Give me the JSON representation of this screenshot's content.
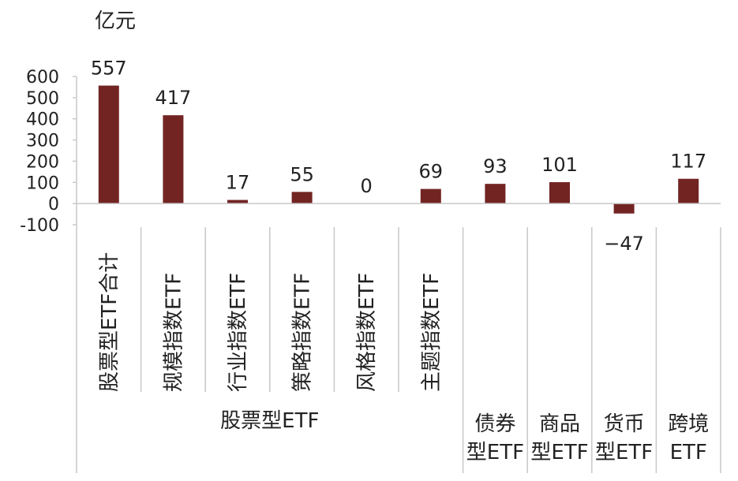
{
  "chart_data": {
    "type": "bar",
    "unit": "亿元",
    "ylim": [
      -100,
      600
    ],
    "yticks": [
      "600",
      "500",
      "400",
      "300",
      "200",
      "100",
      "0",
      "-100"
    ],
    "categories": [
      "股票型ETF合计",
      "规模指数ETF",
      "行业指数ETF",
      "策略指数ETF",
      "风格指数ETF",
      "主题指数ETF",
      "债券型ETF",
      "商品型ETF",
      "货币型ETF",
      "跨境ETF"
    ],
    "values": [
      557,
      417,
      17,
      55,
      0,
      69,
      93,
      101,
      -47,
      117
    ],
    "data_labels": [
      "557",
      "417",
      "17",
      "55",
      "0",
      "69",
      "93",
      "101",
      "−47",
      "117"
    ],
    "groups": [
      {
        "label": "股票型ETF",
        "lines": [
          "股票型ETF"
        ]
      },
      {
        "label": "债券型ETF",
        "lines": [
          "债券",
          "型ETF"
        ]
      },
      {
        "label": "商品型ETF",
        "lines": [
          "商品",
          "型ETF"
        ]
      },
      {
        "label": "货币型ETF",
        "lines": [
          "货币",
          "型ETF"
        ]
      },
      {
        "label": "跨境ETF",
        "lines": [
          "跨境",
          "ETF"
        ]
      }
    ],
    "grid": false,
    "bar_color": "#722423"
  }
}
